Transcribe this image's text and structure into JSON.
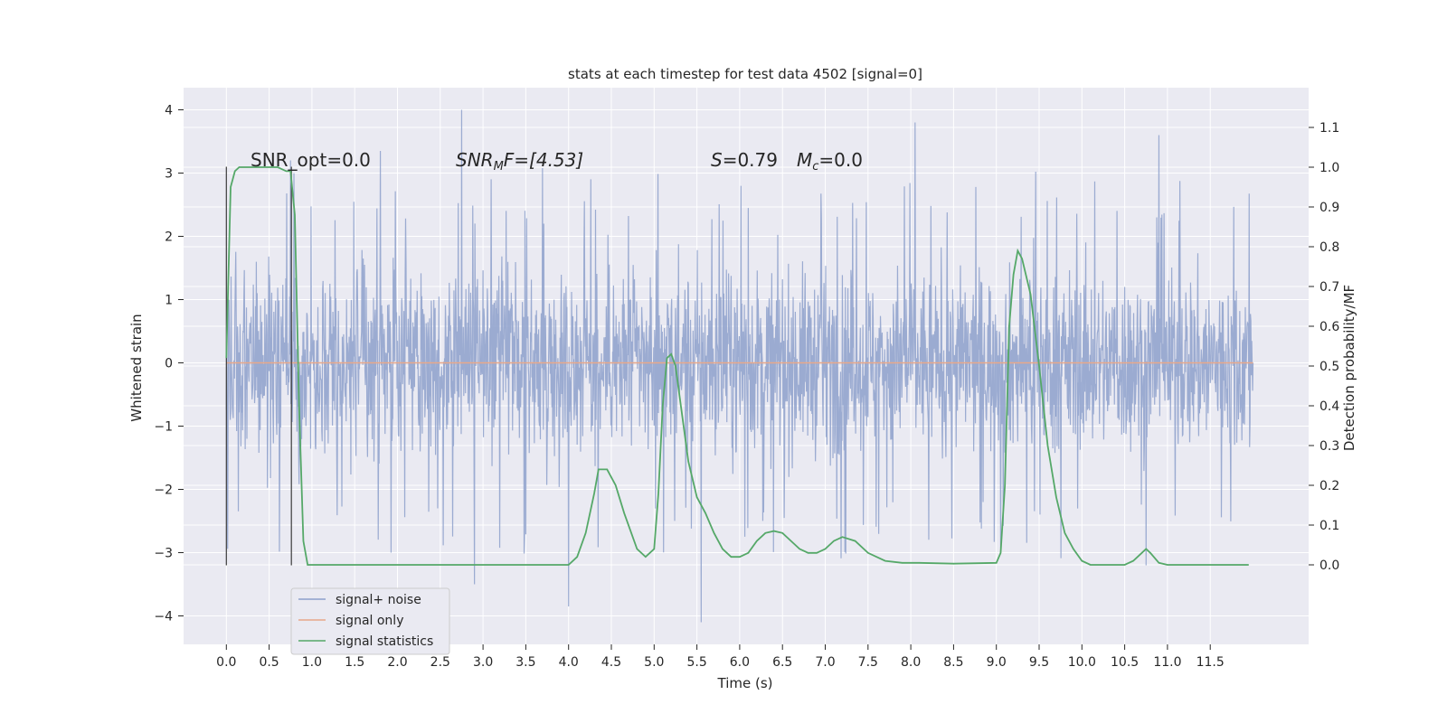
{
  "chart_data": {
    "type": "line",
    "title": "stats at each timestep for test data 4502 [signal=0]",
    "xlabel": "Time (s)",
    "ylabel_left": "Whitened strain",
    "ylabel_right": "Detection probability/MF",
    "xlim": [
      -0.5,
      12.65
    ],
    "ylim_left": [
      -4.45,
      4.35
    ],
    "ylim_right": [
      -0.2,
      1.2
    ],
    "x_ticks": [
      "0.0",
      "0.5",
      "1.0",
      "1.5",
      "2.0",
      "2.5",
      "3.0",
      "3.5",
      "4.0",
      "4.5",
      "5.0",
      "5.5",
      "6.0",
      "6.5",
      "7.0",
      "7.5",
      "8.0",
      "8.5",
      "9.0",
      "9.5",
      "10.0",
      "10.5",
      "11.0",
      "11.5"
    ],
    "x_tick_values": [
      0.0,
      0.5,
      1.0,
      1.5,
      2.0,
      2.5,
      3.0,
      3.5,
      4.0,
      4.5,
      5.0,
      5.5,
      6.0,
      6.5,
      7.0,
      7.5,
      8.0,
      8.5,
      9.0,
      9.5,
      10.0,
      10.5,
      11.0,
      11.5
    ],
    "y_ticks_left": [
      "4",
      "3",
      "2",
      "1",
      "0",
      "−1",
      "−2",
      "−3",
      "−4"
    ],
    "y_tick_values_left": [
      4,
      3,
      2,
      1,
      0,
      -1,
      -2,
      -3,
      -4
    ],
    "y_ticks_right": [
      "1.1",
      "1.0",
      "0.9",
      "0.8",
      "0.7",
      "0.6",
      "0.5",
      "0.4",
      "0.3",
      "0.2",
      "0.1",
      "0.0"
    ],
    "y_tick_values_right": [
      1.1,
      1.0,
      0.9,
      0.8,
      0.7,
      0.6,
      0.5,
      0.4,
      0.3,
      0.2,
      0.1,
      0.0
    ],
    "grid": true,
    "legend_position": "lower-left",
    "annotations": {
      "snr_opt": "SNR_opt=0.0",
      "snr_mf_base": "SNR",
      "snr_mf_sub": "M",
      "snr_mf_tail": "F=[4.53]",
      "s_label": "S",
      "s_value": "=0.79",
      "mc_label": "M",
      "mc_sub": "c",
      "mc_value": "=0.0"
    },
    "vertical_markers": [
      0.0,
      0.76
    ],
    "series": [
      {
        "name": "signal+ noise",
        "color": "#8da0cb",
        "axis": "left",
        "x_range": [
          0.0,
          12.0
        ],
        "envelope_typical": [
          -1.9,
          1.9
        ],
        "notable_peaks": [
          [
            0.75,
            3.2
          ],
          [
            1.8,
            3.35
          ],
          [
            2.75,
            4.0
          ],
          [
            8.05,
            3.8
          ],
          [
            10.9,
            3.6
          ],
          [
            2.9,
            -3.5
          ],
          [
            4.0,
            -3.85
          ],
          [
            5.55,
            -4.1
          ],
          [
            10.75,
            -3.2
          ]
        ]
      },
      {
        "name": "signal only",
        "color": "#e8a88a",
        "axis": "left",
        "x": [
          0.0,
          12.0
        ],
        "y": [
          0.0,
          0.0
        ]
      },
      {
        "name": "signal statistics",
        "color": "#55a868",
        "axis": "right",
        "x": [
          0.0,
          0.05,
          0.1,
          0.15,
          0.2,
          0.3,
          0.4,
          0.5,
          0.6,
          0.7,
          0.75,
          0.8,
          0.85,
          0.9,
          0.95,
          1.0,
          1.5,
          2.0,
          3.0,
          3.5,
          4.0,
          4.1,
          4.2,
          4.3,
          4.35,
          4.45,
          4.55,
          4.65,
          4.8,
          4.9,
          5.0,
          5.05,
          5.1,
          5.15,
          5.2,
          5.25,
          5.3,
          5.4,
          5.5,
          5.6,
          5.7,
          5.8,
          5.9,
          6.0,
          6.1,
          6.2,
          6.3,
          6.4,
          6.5,
          6.6,
          6.7,
          6.8,
          6.9,
          7.0,
          7.1,
          7.2,
          7.35,
          7.5,
          7.7,
          7.9,
          8.1,
          8.5,
          9.0,
          9.05,
          9.1,
          9.15,
          9.2,
          9.25,
          9.3,
          9.4,
          9.5,
          9.6,
          9.7,
          9.8,
          9.9,
          10.0,
          10.1,
          10.3,
          10.5,
          10.6,
          10.7,
          10.75,
          10.8,
          10.9,
          11.0,
          11.5,
          11.95
        ],
        "y": [
          0.52,
          0.95,
          0.99,
          1.0,
          1.0,
          1.0,
          1.0,
          1.0,
          1.0,
          0.99,
          0.99,
          0.88,
          0.4,
          0.06,
          0.0,
          0.0,
          0.0,
          0.0,
          0.0,
          0.0,
          0.0,
          0.02,
          0.08,
          0.18,
          0.24,
          0.24,
          0.2,
          0.13,
          0.04,
          0.02,
          0.04,
          0.18,
          0.4,
          0.52,
          0.53,
          0.5,
          0.42,
          0.26,
          0.17,
          0.13,
          0.08,
          0.04,
          0.02,
          0.02,
          0.03,
          0.06,
          0.08,
          0.085,
          0.08,
          0.06,
          0.04,
          0.03,
          0.03,
          0.04,
          0.06,
          0.07,
          0.06,
          0.03,
          0.01,
          0.005,
          0.005,
          0.003,
          0.005,
          0.03,
          0.2,
          0.6,
          0.73,
          0.79,
          0.77,
          0.68,
          0.5,
          0.3,
          0.17,
          0.08,
          0.04,
          0.01,
          0.0,
          0.0,
          0.0,
          0.01,
          0.03,
          0.04,
          0.03,
          0.005,
          0.0,
          0.0,
          0.0
        ]
      }
    ]
  }
}
